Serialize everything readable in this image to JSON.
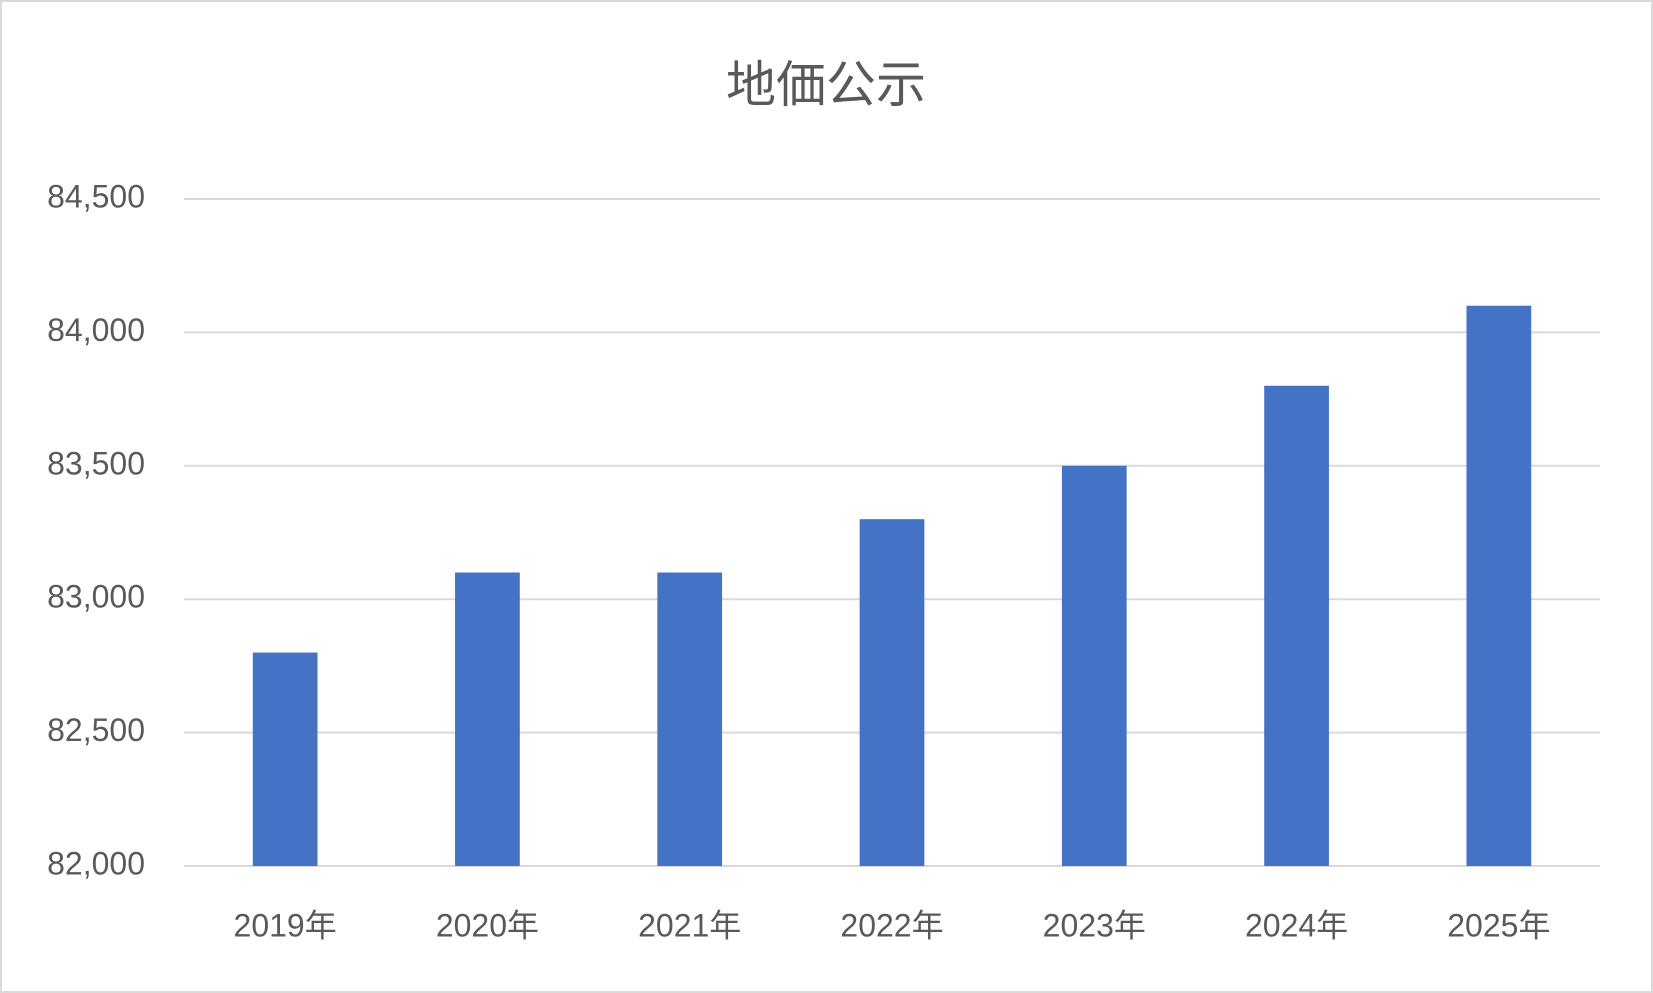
{
  "chart_data": {
    "type": "bar",
    "title": "地価公示",
    "categories": [
      "2019年",
      "2020年",
      "2021年",
      "2022年",
      "2023年",
      "2024年",
      "2025年"
    ],
    "values": [
      82800,
      83100,
      83100,
      83300,
      83500,
      83800,
      84100
    ],
    "color": "#4472c4",
    "ylim": [
      82000,
      84500
    ],
    "yticks": [
      {
        "value": 82000,
        "label": "82,000"
      },
      {
        "value": 82500,
        "label": "82,500"
      },
      {
        "value": 83000,
        "label": "83,000"
      },
      {
        "value": 83500,
        "label": "83,500"
      },
      {
        "value": 84000,
        "label": "84,000"
      },
      {
        "value": 84500,
        "label": "84,500"
      }
    ],
    "grid": true
  }
}
